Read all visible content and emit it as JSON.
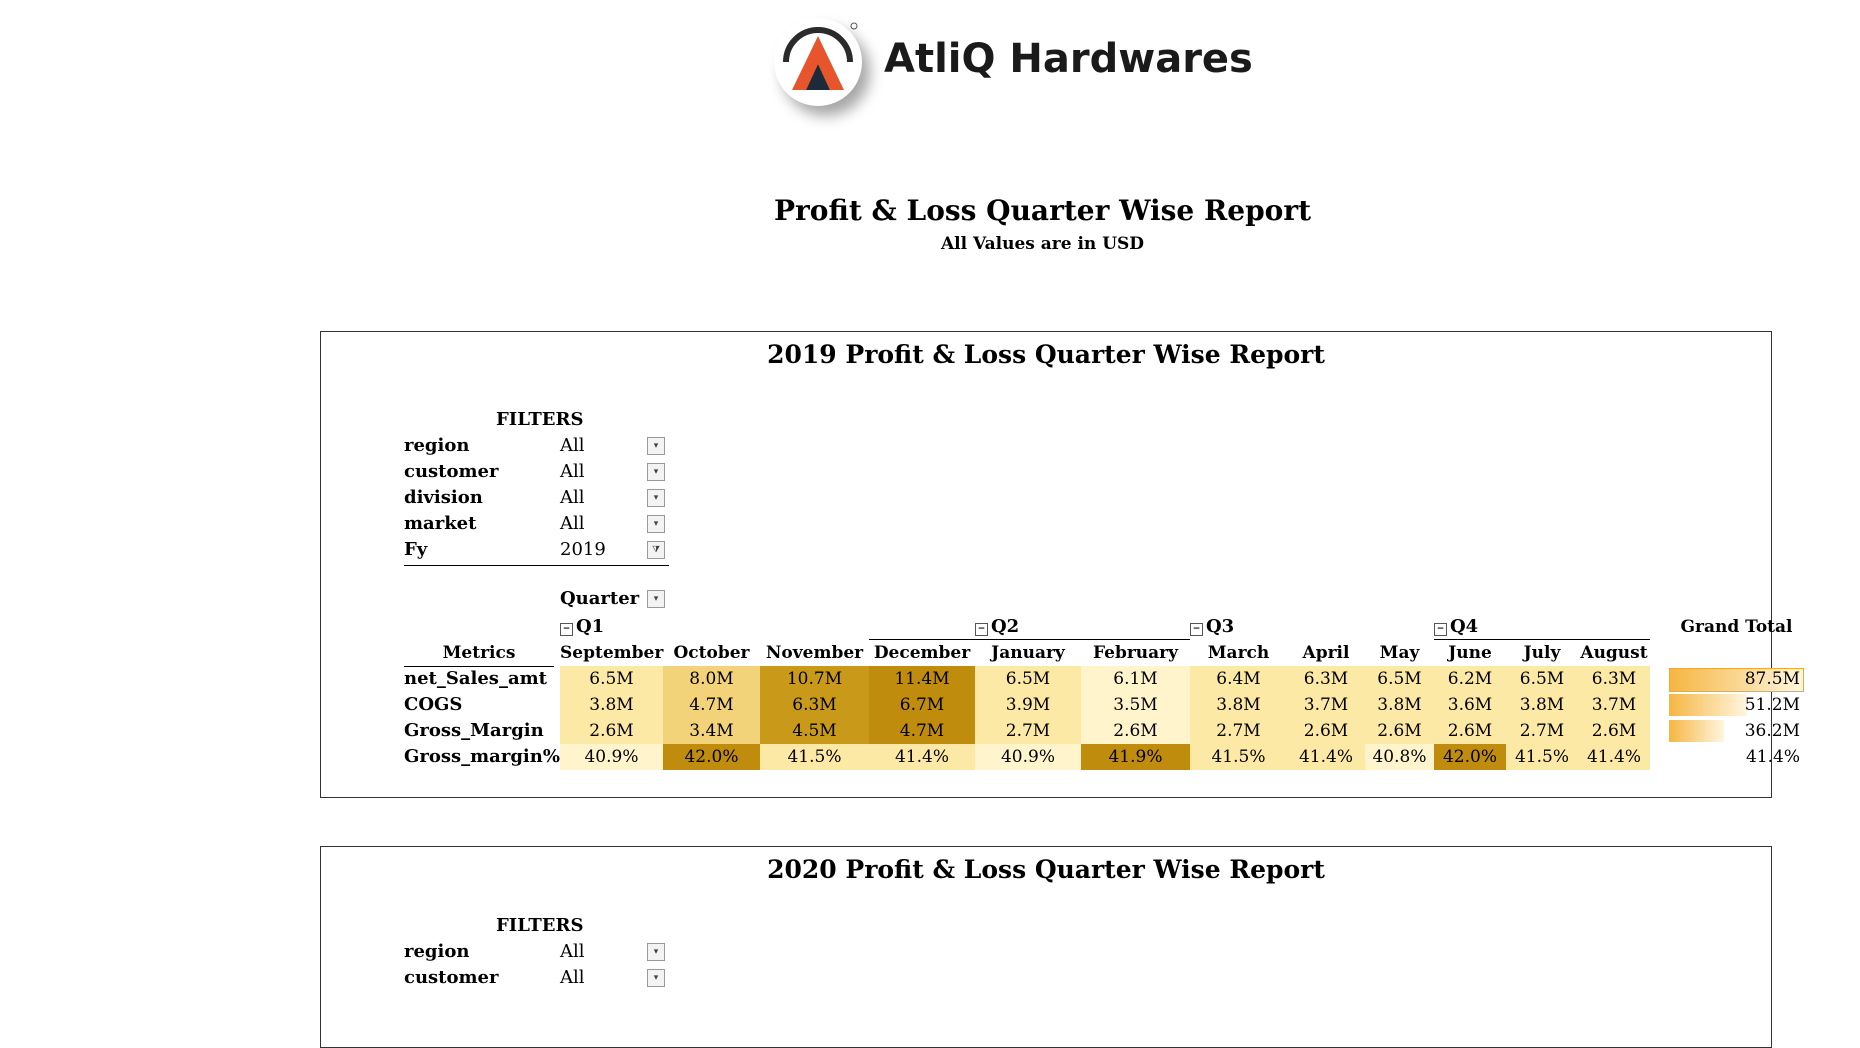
{
  "brand": {
    "name": "AtliQ Hardwares",
    "logo_icon": "atliq-logo-icon"
  },
  "report": {
    "title": "Profit & Loss Quarter Wise Report",
    "subtitle": "All Values are in USD"
  },
  "colors": {
    "lightest": "#fff4cc",
    "light": "#fde9a6",
    "mid": "#f2d37a",
    "dark": "#d8ad3f",
    "darker": "#c99a1a",
    "darkest": "#bf8c0d"
  },
  "panels": [
    {
      "title": "2019 Profit & Loss Quarter Wise Report",
      "filters_heading": "FILTERS",
      "filters": [
        {
          "name": "region",
          "value": "All",
          "icon": "dropdown-icon"
        },
        {
          "name": "customer",
          "value": "All",
          "icon": "dropdown-icon"
        },
        {
          "name": "division",
          "value": "All",
          "icon": "dropdown-icon"
        },
        {
          "name": "market",
          "value": "All",
          "icon": "dropdown-icon"
        },
        {
          "name": "Fy",
          "value": "2019",
          "icon": "filter-icon"
        }
      ],
      "pivot": {
        "quarter_label": "Quarter",
        "metrics_header": "Metrics",
        "grand_total_header": "Grand Total",
        "quarters": [
          "Q1",
          "Q2",
          "Q3",
          "Q4"
        ],
        "months": [
          "September",
          "October",
          "November",
          "December",
          "January",
          "February",
          "March",
          "April",
          "May",
          "June",
          "July",
          "August"
        ],
        "rows": [
          {
            "metric": "net_Sales_amt",
            "values": [
              "6.5M",
              "8.0M",
              "10.7M",
              "11.4M",
              "6.5M",
              "6.1M",
              "6.4M",
              "6.3M",
              "6.5M",
              "6.2M",
              "6.5M",
              "6.3M"
            ],
            "shades": [
              "light",
              "mid",
              "darker",
              "darkest",
              "light",
              "lightest",
              "light",
              "light",
              "light",
              "light",
              "light",
              "light"
            ],
            "grand_total": "87.5M",
            "grand_total_fraction": 1.0
          },
          {
            "metric": "COGS",
            "values": [
              "3.8M",
              "4.7M",
              "6.3M",
              "6.7M",
              "3.9M",
              "3.5M",
              "3.8M",
              "3.7M",
              "3.8M",
              "3.6M",
              "3.8M",
              "3.7M"
            ],
            "shades": [
              "light",
              "mid",
              "darker",
              "darkest",
              "light",
              "lightest",
              "light",
              "light",
              "light",
              "light",
              "light",
              "light"
            ],
            "grand_total": "51.2M",
            "grand_total_fraction": 0.59
          },
          {
            "metric": "Gross_Margin",
            "values": [
              "2.6M",
              "3.4M",
              "4.5M",
              "4.7M",
              "2.7M",
              "2.6M",
              "2.7M",
              "2.6M",
              "2.6M",
              "2.6M",
              "2.7M",
              "2.6M"
            ],
            "shades": [
              "light",
              "mid",
              "darker",
              "darkest",
              "light",
              "lightest",
              "light",
              "light",
              "light",
              "light",
              "light",
              "light"
            ],
            "grand_total": "36.2M",
            "grand_total_fraction": 0.41
          },
          {
            "metric": "Gross_margin%",
            "values": [
              "40.9%",
              "42.0%",
              "41.5%",
              "41.4%",
              "40.9%",
              "41.9%",
              "41.5%",
              "41.4%",
              "40.8%",
              "42.0%",
              "41.5%",
              "41.4%"
            ],
            "shades": [
              "lightest",
              "darkest",
              "light",
              "light",
              "lightest",
              "darkest",
              "light",
              "light",
              "lightest",
              "darkest",
              "light",
              "light"
            ],
            "grand_total": "41.4%",
            "grand_total_fraction": 0
          }
        ]
      }
    },
    {
      "title": "2020 Profit & Loss Quarter Wise Report",
      "filters_heading": "FILTERS",
      "filters": [
        {
          "name": "region",
          "value": "All",
          "icon": "dropdown-icon"
        },
        {
          "name": "customer",
          "value": "All",
          "icon": "dropdown-icon"
        }
      ]
    }
  ]
}
